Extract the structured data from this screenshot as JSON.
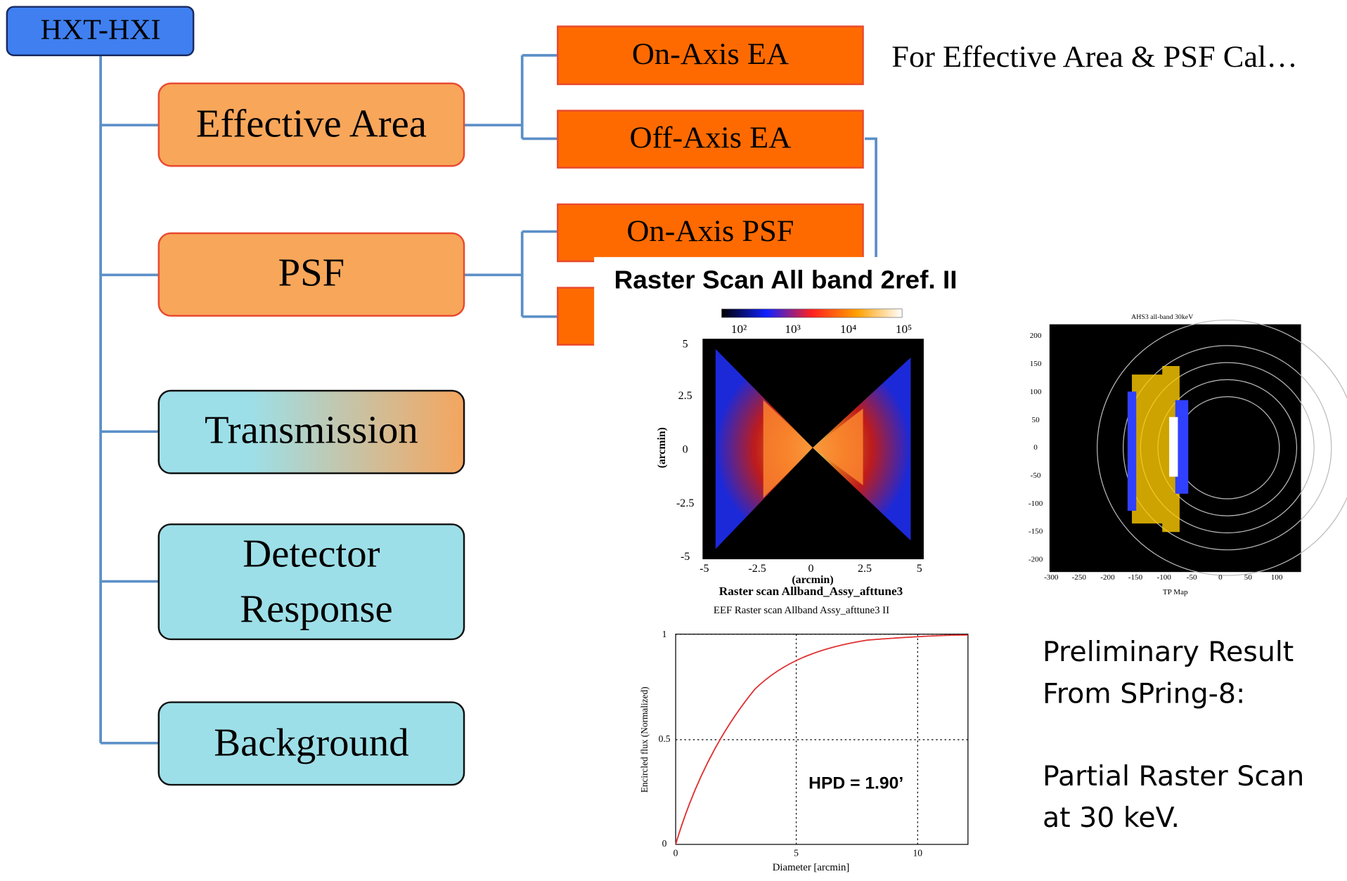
{
  "root": "HXT-HXI",
  "nodes": [
    "Effective Area",
    "PSF",
    "Transmission",
    "Detector Response",
    "Background"
  ],
  "subnodes": [
    "On-Axis EA",
    "Off-Axis EA",
    "On-Axis PSF"
  ],
  "note": "For Effective Area & PSF Cal…",
  "figure": {
    "title": "Raster Scan All band 2ref. II",
    "left_plot": {
      "colorbar_ticks": [
        "10²",
        "10³",
        "10⁴",
        "10⁵"
      ],
      "yticks": [
        "5",
        "2.5",
        "0",
        "-2.5",
        "-5"
      ],
      "xticks": [
        "-5",
        "-2.5",
        "0",
        "2.5",
        "5"
      ],
      "xlabel": "(arcmin)",
      "ylabel": "(arcmin)",
      "caption": "Raster scan Allband_Assy_afttune3"
    },
    "right_plot": {
      "title": "AHS3 all-band 30keV",
      "yticks": [
        "200",
        "150",
        "100",
        "50",
        "0",
        "-50",
        "-100",
        "-150",
        "-200"
      ],
      "xticks": [
        "-300",
        "-250",
        "-200",
        "-150",
        "-100",
        "-50",
        "0",
        "50",
        "100"
      ],
      "xlabel": "TP Map"
    },
    "bottom_plot": {
      "title": "EEF Raster scan Allband Assy_afttune3 II",
      "yticks": [
        "0",
        "0.5",
        "1"
      ],
      "xticks": [
        "0",
        "5",
        "10"
      ],
      "ylabel": "Encircled flux (Normalized)",
      "xlabel": "Diameter [arcmin]",
      "annotation": "HPD = 1.90’"
    }
  },
  "side_text": [
    "Preliminary Result",
    "From SPring-8:",
    "Partial Raster Scan",
    "at 30 keV."
  ]
}
